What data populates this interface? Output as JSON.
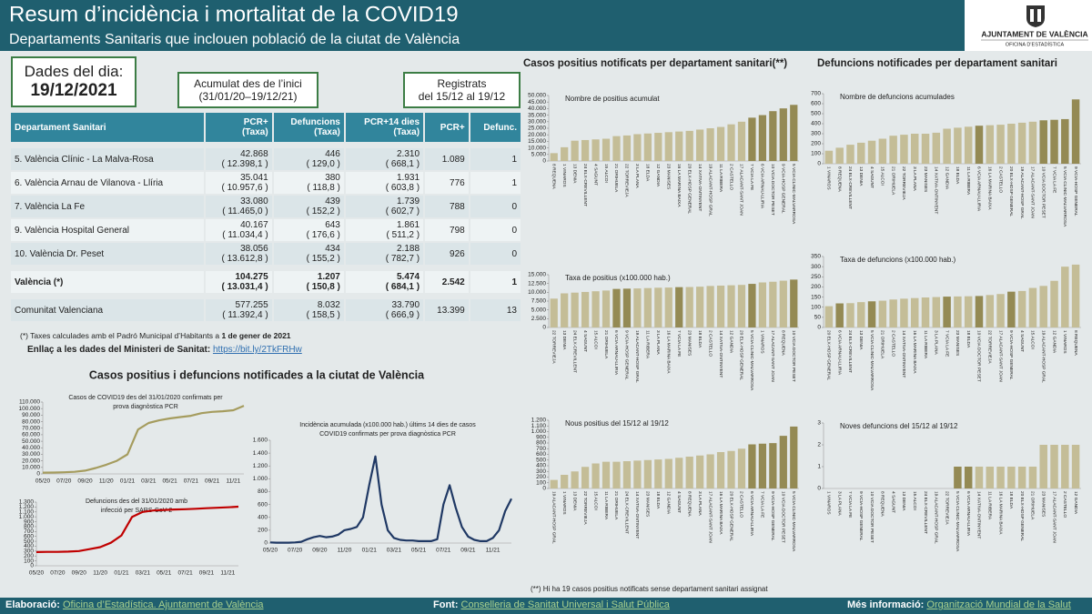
{
  "header": {
    "title": "Resum d’incidència i mortalitat de la COVID19",
    "subtitle": "Departaments Sanitaris que inclouen població de la ciutat de València",
    "logo_title": "AJUNTAMENT DE VALÈNCIA",
    "logo_subtitle": "OFICINA D’ESTADÍSTICA"
  },
  "boxes": {
    "date_label": "Dades del dia:",
    "date": "19/12/2021",
    "cumulative_label": "Acumulat des de l’inici",
    "cumulative_range": "(31/01/20–19/12/21)",
    "recent_label": "Registrats",
    "recent_range": "del 15/12 al 19/12"
  },
  "table": {
    "headers": [
      "Departament Sanitari",
      "PCR+",
      "Defuncions",
      "PCR+14 dies",
      "PCR+",
      "Defunc."
    ],
    "subheaders": [
      "(Taxa)",
      "(Taxa)",
      "(Taxa)"
    ],
    "rows": [
      [
        "5. València Clínic - La Malva-Rosa",
        "42.868",
        "( 12.398,1 )",
        "446",
        "( 129,0 )",
        "2.310",
        "( 668,1 )",
        "1.089",
        "1"
      ],
      [
        "6. València Arnau de Vilanova - Llíria",
        "35.041",
        "( 10.957,6 )",
        "380",
        "( 118,8 )",
        "1.931",
        "( 603,8 )",
        "776",
        "1"
      ],
      [
        "7. València La Fe",
        "33.080",
        "( 11.465,0 )",
        "439",
        "( 152,2 )",
        "1.739",
        "( 602,7 )",
        "788",
        "0"
      ],
      [
        "9. València Hospital General",
        "40.167",
        "( 11.034,4 )",
        "643",
        "( 176,6 )",
        "1.861",
        "( 511,2 )",
        "798",
        "0"
      ],
      [
        "10. València Dr. Peset",
        "38.056",
        "( 13.612,8 )",
        "434",
        "( 155,2 )",
        "2.188",
        "( 782,7 )",
        "926",
        "0"
      ],
      [
        "València (*)",
        "104.275",
        "( 13.031,4 )",
        "1.207",
        "( 150,8 )",
        "5.474",
        "( 684,1 )",
        "2.542",
        "1"
      ],
      [
        "Comunitat Valenciana",
        "577.255",
        "( 11.392,4 )",
        "8.032",
        "( 158,5 )",
        "33.790",
        "( 666,9 )",
        "13.399",
        "13"
      ]
    ]
  },
  "notes": {
    "rates": "(*) Taxes calculades amb el Padró Municipal d’Habitants a",
    "rates_date": "1 de gener de 2021",
    "link_label": "Enllaç a les dades del Ministeri de Sanitat:",
    "link": "https://bit.ly/2TkFRHw",
    "city_section": "Casos positius i defuncions notificades a la ciutat de València",
    "cases_section": "Casos positius notificats per departament sanitari(**)",
    "deaths_section": "Defuncions notificades per departament sanitari",
    "footnote": "(**) Hi ha 19 casos positius notificats sense departament sanitari assignat"
  },
  "footer": {
    "made_label": "Elaboració:",
    "made": "Oficina d’Estadística. Ajuntament de València",
    "source_label": "Font:",
    "source": "Conselleria de Sanitat Universal i Salut Pública",
    "info_label": "Més informació:",
    "info": "Organització Mundial de la Salut"
  },
  "bar_charts": [
    {
      "type": "bar",
      "title": "Nombre de positius acumulat",
      "color": "#c4bd97",
      "highlight_color": "#948a54",
      "highlight": [
        19,
        20,
        21,
        22,
        23
      ],
      "categories": [
        "8 REQUENA",
        "1 VINAROS",
        "13 DENIA",
        "24 ELX-CREVILLENT",
        "4 SAGUNT",
        "15 ALCOI",
        "21 ORIHUELA",
        "22 TORREVIEJA",
        "3 LA PLANA",
        "18 ELDA",
        "12 GANDIA",
        "23 MANISES",
        "16 LA MARINA BAIXA",
        "20 ELX-HOSP GENERAL",
        "14 XATIVA-ONTINYENT",
        "19 ALACANT-HOSP GRAL",
        "11 LA RIBERA",
        "2 CASTELLO",
        "17 ALACANT-SANT JOAN",
        "7 VCIA LA FE",
        "6 VCIA ARNAU-LLIRIA",
        "10 VCIA DOCTOR PESET",
        "9 VCIA-HOSP GENERAL",
        "5 VCIA CLINIC-MALVARROSA"
      ],
      "values": [
        6000,
        10500,
        15500,
        16000,
        16500,
        17000,
        19000,
        19500,
        20500,
        21000,
        21500,
        22000,
        22500,
        23000,
        24000,
        25000,
        26000,
        28000,
        30000,
        33080,
        35041,
        38056,
        40167,
        42868
      ],
      "ylim": [
        0,
        50000
      ],
      "yticks": [
        0,
        {
          "value": 5000,
          "label": "5.000"
        },
        {
          "value": 10000,
          "label": "10.000"
        },
        {
          "value": 15000,
          "label": "15.000"
        },
        {
          "value": 20000,
          "label": "20.000"
        },
        {
          "value": 25000,
          "label": "25.000"
        },
        {
          "value": 30000,
          "label": "30.000"
        },
        {
          "value": 35000,
          "label": "35.000"
        },
        {
          "value": 40000,
          "label": "40.000"
        },
        {
          "value": 45000,
          "label": "45.000"
        },
        {
          "value": 50000,
          "label": "50.000"
        }
      ]
    },
    {
      "type": "bar",
      "title": "Nombre de defuncions acumulades",
      "color": "#c4bd97",
      "highlight_color": "#948a54",
      "highlight": [
        14,
        20,
        21,
        22,
        23
      ],
      "categories": [
        "1 VINAROS",
        "8 REQUENA",
        "24 ELX-CREVILLENT",
        "13 DENIA",
        "4 SAGUNT",
        "15 ALCOI",
        "21 ORIHUELA",
        "22 TORREVIEJA",
        "3 LA PLANA",
        "23 MANISES",
        "14 XATIVA-ONTINYENT",
        "12 GANDIA",
        "18 ELDA",
        "11 LA RIBERA",
        "6 VCIA ARNAU-LLIRIA",
        "16 LA MARINA BAIXA",
        "2 CASTELLO",
        "20 ELX-HOSP GENERAL",
        "19 ALACANT-HOSP GRAL",
        "17 ALACANT-SANT JOAN",
        "10 VCIA DOCTOR PESET",
        "7 VCIA LA FE",
        "5 VCIA CLINIC-MALVARROSA",
        "9 VCIA-HOSP GENERAL"
      ],
      "values": [
        130,
        160,
        190,
        210,
        230,
        250,
        280,
        290,
        300,
        300,
        310,
        350,
        360,
        370,
        380,
        385,
        390,
        400,
        410,
        420,
        434,
        439,
        446,
        643
      ],
      "ylim": [
        0,
        700
      ],
      "yticks": [
        0,
        100,
        200,
        300,
        400,
        500,
        600,
        700
      ]
    },
    {
      "type": "bar",
      "title": "Taxa de positius (x100.000 hab.)",
      "color": "#c4bd97",
      "highlight_color": "#948a54",
      "highlight": [
        6,
        7,
        12,
        19,
        23
      ],
      "categories": [
        "22 TORREVIEJA",
        "13 DENIA",
        "24 ELX-CREVILLENT",
        "4 SAGUNT",
        "15 ALCOI",
        "21 ORIHUELA",
        "6 VCIA ARNAU-LLIRIA",
        "9 VCIA-HOSP GENERAL",
        "19 ALACANT-HOSP GRAL",
        "11 LA RIBERA",
        "3 LA PLANA",
        "16 LA MARINA BAIXA",
        "7 VCIA LA FE",
        "23 MANISES",
        "18 ELDA",
        "2 CASTELLO",
        "14 XATIVA-ONTINYENT",
        "12 GANDIA",
        "20 ELX-HOSP GENERAL",
        "5 VCIA CLINIC-MALVARROSA",
        "1 VINAROS",
        "17 ALACANT-SANT JOAN",
        "8 REQUENA",
        "10 VCIA DOCTOR PESET"
      ],
      "values": [
        8200,
        9700,
        9900,
        10100,
        10300,
        10500,
        10957.6,
        11034.4,
        11100,
        11200,
        11300,
        11350,
        11465,
        11500,
        11600,
        11800,
        11900,
        12000,
        12100,
        12398.1,
        12800,
        13000,
        13300,
        13612.8
      ],
      "ylim": [
        0,
        15000
      ],
      "yticks": [
        0,
        {
          "value": 2500,
          "label": "2.500"
        },
        {
          "value": 5000,
          "label": "5.000"
        },
        {
          "value": 7500,
          "label": "7.500"
        },
        {
          "value": 10000,
          "label": "10.000"
        },
        {
          "value": 12500,
          "label": "12.500"
        },
        {
          "value": 15000,
          "label": "15.000"
        }
      ]
    },
    {
      "type": "bar",
      "title": "Taxa de defuncions (x100.000 hab.)",
      "color": "#c4bd97",
      "highlight_color": "#948a54",
      "highlight": [
        1,
        4,
        11,
        14,
        17
      ],
      "categories": [
        "20 ELX-HOSP GENERAL",
        "6 VCIA ARNAU-LLIRIA",
        "24 ELX-CREVILLENT",
        "13 DENIA",
        "5 VCIA CLINIC-MALVARROSA",
        "21 ORIHUELA",
        "2 CASTELLO",
        "14 XATIVA-ONTINYENT",
        "16 LA MARINA BAIXA",
        "11 LA RIBERA",
        "3 LA PLANA",
        "7 VCIA LA FE",
        "23 MANISES",
        "18 ELDA",
        "10 VCIA DOCTOR PESET",
        "22 TORREVIEJA",
        "17 ALACANT-SANT JOAN",
        "9 VCIA-HOSP GENERAL",
        "4 SAGUNT",
        "15 ALCOI",
        "19 ALACANT-HOSP GRAL",
        "12 GANDIA",
        "1 VINAROS",
        "8 REQUENA"
      ],
      "values": [
        105,
        118.8,
        120,
        125,
        129,
        132,
        138,
        142,
        145,
        148,
        150,
        152.2,
        153,
        154,
        155.2,
        160,
        165,
        176.6,
        180,
        195,
        205,
        230,
        300,
        310
      ],
      "ylim": [
        0,
        350
      ],
      "yticks": [
        0,
        50,
        100,
        150,
        200,
        250,
        300,
        350
      ]
    },
    {
      "type": "bar",
      "title": "Nous positius del 15/12 al 19/12",
      "color": "#c4bd97",
      "highlight_color": "#948a54",
      "highlight": [
        19,
        20,
        21,
        22,
        23
      ],
      "categories": [
        "19 ALACANT-HOSP GRAL",
        "1 VINAROS",
        "13 DENIA",
        "22 TORREVIEJA",
        "15 ALCOI",
        "11 LA RIBERA",
        "21 ORIHUELA",
        "24 ELX-CREVILLENT",
        "14 XATIVA-ONTINYENT",
        "23 MANISES",
        "18 ELDA",
        "12 GANDIA",
        "4 SAGUNT",
        "8 REQUENA",
        "3 LA PLANA",
        "17 ALACANT-SANT JOAN",
        "16 LA MARINA BAIXA",
        "20 ELX-HOSP GENERAL",
        "2 CASTELLO",
        "6 VCIA ARNAU-LLIRIA",
        "7 VCIA LA FE",
        "9 VCIA-HOSP GENERAL",
        "10 VCIA DOCTOR PESET",
        "5 VCIA CLINIC-MALVARROSA"
      ],
      "values": [
        150,
        240,
        300,
        380,
        440,
        470,
        470,
        480,
        490,
        500,
        510,
        520,
        540,
        560,
        580,
        600,
        640,
        660,
        700,
        776,
        788,
        798,
        926,
        1089
      ],
      "ylim": [
        0,
        1200
      ],
      "yticks": [
        0,
        100,
        200,
        300,
        400,
        500,
        600,
        700,
        800,
        900,
        {
          "value": 1000,
          "label": "1.000"
        },
        {
          "value": 1100,
          "label": "1.100"
        },
        {
          "value": 1200,
          "label": "1.200"
        }
      ]
    },
    {
      "type": "bar",
      "title": "Noves defuncions del 15/12 al 19/12",
      "color": "#c4bd97",
      "highlight_color": "#948a54",
      "highlight": [
        2,
        3,
        4,
        12,
        13
      ],
      "categories": [
        "1 VINAROS",
        "3 LA PLANA",
        "7 VCIA LA FE",
        "9 VCIA-HOSP GENERAL",
        "10 VCIA DOCTOR PESET",
        "8 REQUENA",
        "4 SAGUNT",
        "13 DENIA",
        "15 ALCOI",
        "24 ELX-CREVILLENT",
        "19 ALACANT-HOSP GRAL",
        "22 TORREVIEJA",
        "5 VCIA CLINIC-MALVARROSA",
        "6 VCIA ARNAU-LLIRIA",
        "14 XATIVA-ONTINYENT",
        "11 LA RIBERA",
        "16 LA MARINA BAIXA",
        "18 ELDA",
        "20 ELX-HOSP GENERAL",
        "21 ORIHUELA",
        "23 MANISES",
        "17 ALACANT-SANT JOAN",
        "2 CASTELLO",
        "12 GANDIA"
      ],
      "values": [
        0,
        0,
        0,
        0,
        0,
        0,
        0,
        0,
        0,
        0,
        0,
        0,
        1,
        1,
        1,
        1,
        1,
        1,
        1,
        1,
        2,
        2,
        2,
        2
      ],
      "ylim": [
        0,
        3
      ],
      "yticks": [
        0,
        1,
        2,
        3
      ]
    }
  ],
  "line_charts": [
    {
      "type": "line",
      "title": [
        "Casos de COVID19 des del 31/01/2020 confirmats per",
        "prova diagnòstica PCR"
      ],
      "color": "#a59c5e",
      "categories": [
        "05/20",
        null,
        "07/20",
        null,
        "09/20",
        null,
        "11/20",
        null,
        "01/21",
        null,
        "03/21",
        null,
        "05/21",
        null,
        "07/21",
        null,
        "09/21",
        null,
        "11/21",
        null
      ],
      "values": [
        1900,
        2100,
        2500,
        3200,
        5000,
        9000,
        14000,
        20000,
        30000,
        68000,
        78000,
        82000,
        85000,
        87000,
        89000,
        93000,
        95000,
        96000,
        97500,
        104275
      ],
      "ylim": [
        0,
        110000
      ],
      "yticks": [
        0,
        {
          "value": 10000,
          "label": "10.000"
        },
        {
          "value": 20000,
          "label": "20.000"
        },
        {
          "value": 30000,
          "label": "30.000"
        },
        {
          "value": 40000,
          "label": "40.000"
        },
        {
          "value": 50000,
          "label": "50.000"
        },
        {
          "value": 60000,
          "label": "60.000"
        },
        {
          "value": 70000,
          "label": "70.000"
        },
        {
          "value": 80000,
          "label": "80.000"
        },
        {
          "value": 90000,
          "label": "90.000"
        },
        {
          "value": 100000,
          "label": "100.000"
        },
        {
          "value": 110000,
          "label": "110.000"
        }
      ]
    },
    {
      "type": "line",
      "title": [
        "Defuncions des del 31/01/2020 amb",
        "infecció per SARS-CoV-2"
      ],
      "color": "#c00000",
      "categories": [
        "05/20",
        null,
        "07/20",
        null,
        "09/20",
        null,
        "11/20",
        null,
        "01/21",
        null,
        "03/21",
        null,
        "05/21",
        null,
        "07/21",
        null,
        "09/21",
        null,
        "11/21",
        null
      ],
      "values": [
        280,
        285,
        285,
        290,
        300,
        340,
        380,
        470,
        620,
        1000,
        1100,
        1130,
        1140,
        1150,
        1155,
        1165,
        1175,
        1185,
        1195,
        1207
      ],
      "ylim": [
        0,
        1300
      ],
      "yticks": [
        0,
        100,
        200,
        300,
        400,
        500,
        600,
        700,
        800,
        900,
        {
          "value": 1000,
          "label": "1.000"
        },
        {
          "value": 1100,
          "label": "1.100"
        },
        {
          "value": 1200,
          "label": "1.200"
        },
        {
          "value": 1300,
          "label": "1.300"
        }
      ]
    },
    {
      "type": "line",
      "title": [
        "Incidència acumulada (x100.000 hab.) últims 14 dies de casos",
        "COVID19 confirmats per prova diagnòstica PCR"
      ],
      "color": "#1f3864",
      "categories": [
        "05/20",
        null,
        null,
        null,
        "07/20",
        null,
        null,
        null,
        "09/20",
        null,
        null,
        null,
        "11/20",
        null,
        null,
        null,
        "01/21",
        null,
        null,
        null,
        "03/21",
        null,
        null,
        null,
        "05/21",
        null,
        null,
        null,
        "07/21",
        null,
        null,
        null,
        "09/21",
        null,
        null,
        null,
        "11/21",
        null,
        null,
        null
      ],
      "values": [
        10,
        5,
        5,
        5,
        10,
        20,
        60,
        90,
        110,
        90,
        100,
        130,
        200,
        220,
        250,
        400,
        900,
        1350,
        600,
        200,
        80,
        50,
        40,
        40,
        30,
        30,
        30,
        60,
        600,
        900,
        550,
        250,
        100,
        50,
        30,
        30,
        80,
        200,
        500,
        690
      ],
      "ylim": [
        0,
        1600
      ],
      "yticks": [
        0,
        200,
        400,
        600,
        800,
        {
          "value": 1000,
          "label": "1.000"
        },
        {
          "value": 1200,
          "label": "1.200"
        },
        {
          "value": 1400,
          "label": "1.400"
        },
        {
          "value": 1600,
          "label": "1.600"
        }
      ]
    }
  ]
}
